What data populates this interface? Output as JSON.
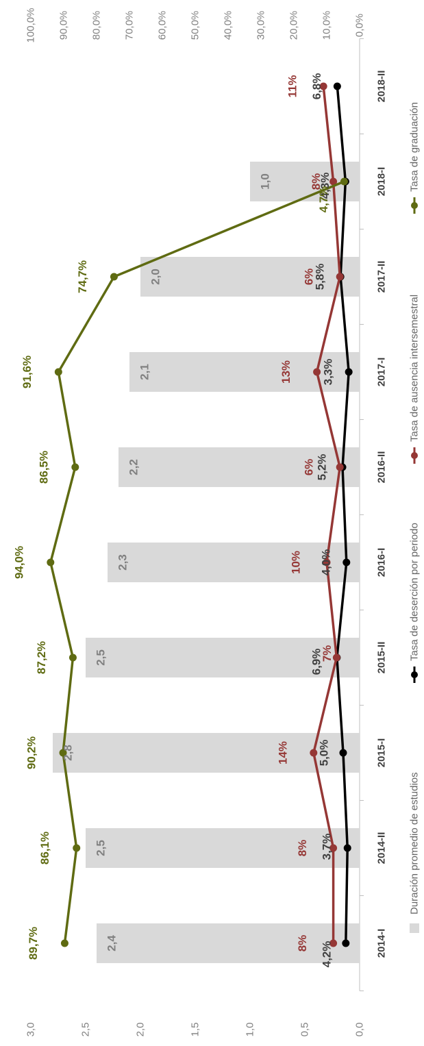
{
  "chart_data": {
    "type": "bar",
    "categories": [
      "2014-I",
      "2014-II",
      "2015-I",
      "2015-II",
      "2016-I",
      "2016-II",
      "2017-I",
      "2017-II",
      "2018-I",
      "2018-II"
    ],
    "bar_series": {
      "name": "Duración promedio de estudios",
      "color": "#d9d9d9",
      "values": [
        2.4,
        2.5,
        2.8,
        2.5,
        2.3,
        2.2,
        2.1,
        2.0,
        1.0,
        null
      ],
      "labels": [
        "2,4",
        "2,5",
        "2,8",
        "2,5",
        "2,3",
        "2,2",
        "2,1",
        "2,0",
        "1,0",
        ""
      ]
    },
    "line_series": [
      {
        "name": "Tasa de deserción por periodo",
        "color": "#000000",
        "values": [
          4.2,
          3.7,
          5.0,
          6.9,
          4.0,
          5.2,
          3.3,
          5.8,
          4.3,
          6.8
        ],
        "labels": [
          "4,2%",
          "3,7%",
          "5,0%",
          "6,9%",
          "4,0%",
          "5,2%",
          "3,3%",
          "5,8%",
          "4,3%",
          "6,8%"
        ]
      },
      {
        "name": "Tasa de ausencia intersemestral",
        "color": "#953735",
        "values": [
          8,
          8,
          14,
          7,
          10,
          6,
          13,
          6,
          8,
          11
        ],
        "labels": [
          "8%",
          "8%",
          "14%",
          "7%",
          "10%",
          "6%",
          "13%",
          "6%",
          "8%",
          "11%"
        ]
      },
      {
        "name": "Tasa de graduación",
        "color": "#5f6b12",
        "values": [
          89.7,
          86.1,
          90.2,
          87.2,
          94.0,
          86.5,
          91.6,
          74.7,
          4.7,
          null
        ],
        "labels": [
          "89,7%",
          "86,1%",
          "90,2%",
          "87,2%",
          "94,0%",
          "86,5%",
          "91,6%",
          "74,7%",
          "4,7%",
          ""
        ]
      }
    ],
    "left_axis": {
      "range": [
        0,
        3
      ],
      "ticks": [
        "0,0",
        "0,5",
        "1,0",
        "1,5",
        "2,0",
        "2,5",
        "3,0"
      ]
    },
    "right_axis": {
      "range": [
        0,
        100
      ],
      "ticks": [
        "0,0%",
        "10,0%",
        "20,0%",
        "30,0%",
        "40,0%",
        "50,0%",
        "60,0%",
        "70,0%",
        "80,0%",
        "90,0%",
        "100,0%"
      ]
    },
    "grid": false,
    "legend_position": "bottom",
    "orientation": "rotated 90° clockwise"
  }
}
